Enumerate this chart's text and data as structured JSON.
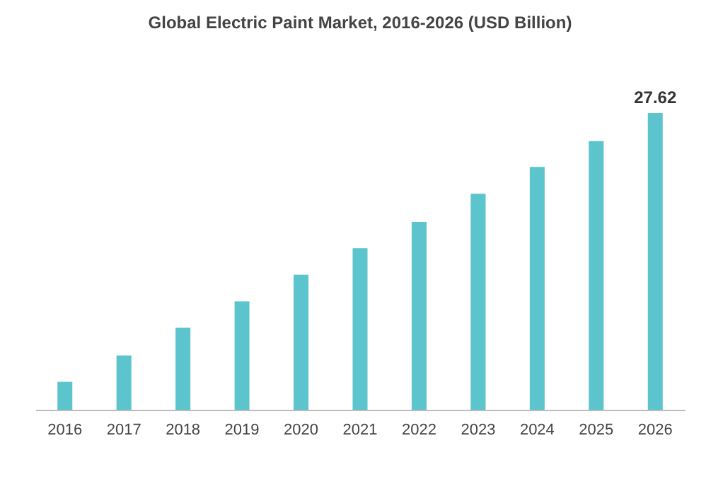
{
  "chart_data": {
    "type": "bar",
    "title": "Global Electric Paint Market, 2016-2026 (USD Billion)",
    "categories": [
      "2016",
      "2017",
      "2018",
      "2019",
      "2020",
      "2021",
      "2022",
      "2023",
      "2024",
      "2025",
      "2026"
    ],
    "values": [
      2.6,
      5.05,
      7.65,
      10.1,
      12.57,
      15.05,
      17.5,
      20.1,
      22.6,
      25.0,
      27.62
    ],
    "value_labels": [
      null,
      null,
      null,
      null,
      null,
      null,
      null,
      null,
      null,
      null,
      "27.62"
    ],
    "color": "#5bc4cc"
  }
}
